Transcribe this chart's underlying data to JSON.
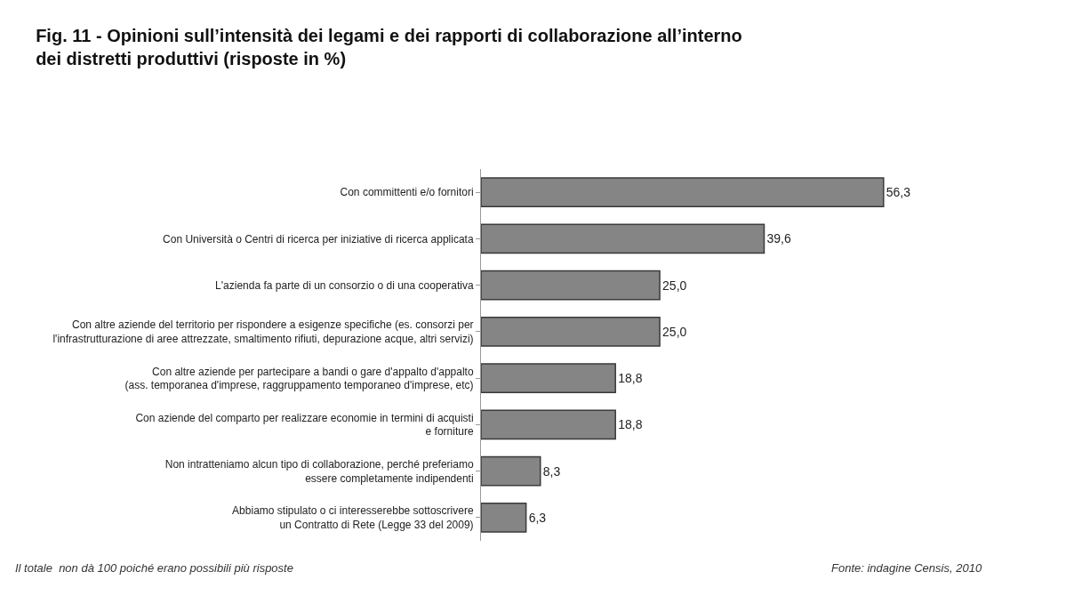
{
  "chart_data": {
    "type": "bar",
    "orientation": "horizontal",
    "title": "Fig. 11 - Opinioni sull’intensità dei legami e dei rapporti di collaborazione all’interno\ndei distretti produttivi (risposte in %)",
    "categories": [
      "Con committenti e/o fornitori",
      "Con Università o Centri di ricerca per iniziative di ricerca applicata",
      "L'azienda fa parte di un consorzio o di una cooperativa",
      "Con altre aziende del territorio per rispondere a esigenze specifiche (es. consorzi per\nl'infrastrutturazione di aree attrezzate, smaltimento rifiuti, depurazione acque, altri servizi)",
      "Con altre aziende per partecipare a bandi o gare d'appalto d'appalto\n(ass. temporanea d'imprese, raggruppamento temporaneo d'imprese, etc)",
      "Con aziende del comparto per realizzare economie in termini di acquisti\ne forniture",
      "Non intratteniamo alcun tipo di collaborazione, perché preferiamo\nessere completamente indipendenti",
      "Abbiamo stipulato o ci interesserebbe sottoscrivere\nun Contratto di Rete (Legge 33 del 2009)"
    ],
    "values": [
      56.3,
      39.6,
      25.0,
      25.0,
      18.8,
      18.8,
      8.3,
      6.3
    ],
    "value_labels": [
      "56,3",
      "39,6",
      "25,0",
      "25,0",
      "18,8",
      "18,8",
      "8,3",
      "6,3"
    ],
    "color": "#858585",
    "annotations": [
      "Il totale  non dà 100 poiché erano possibili più risposte",
      "Fonte: indagine Censis, 2010"
    ]
  }
}
